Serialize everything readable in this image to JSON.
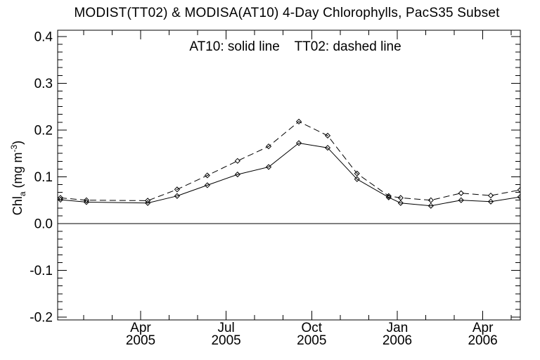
{
  "window": {
    "background": "#ffffff",
    "foreground": "#000000"
  },
  "chart_data": {
    "type": "line",
    "title": "MODIST(TT02) & MODISA(AT10) 4-Day Chlorophylls, PacS35 Subset",
    "legend_text": "AT10: solid line    TT02: dashed line",
    "ylabel": {
      "pre": "Chl",
      "sub": "a",
      "mid": " (mg m",
      "sup": "-3",
      "post": ")"
    },
    "y_axis": {
      "ticks": [
        {
          "label": "0.4",
          "value": 0.4
        },
        {
          "label": "0.3",
          "value": 0.3
        },
        {
          "label": "0.2",
          "value": 0.2
        },
        {
          "label": "0.1",
          "value": 0.1
        },
        {
          "label": "0.0",
          "value": 0.0
        },
        {
          "label": "-0.1",
          "value": -0.1
        },
        {
          "label": "-0.2",
          "value": -0.2
        }
      ],
      "minor_intervals_per_major": 6,
      "zero_reference_line": true,
      "grid": false
    },
    "x_axis": {
      "major_ticks": [
        {
          "line1": "Apr",
          "line2": "2005",
          "m": 3
        },
        {
          "line1": "Jul",
          "line2": "2005",
          "m": 6
        },
        {
          "line1": "Oct",
          "line2": "2005",
          "m": 9
        },
        {
          "line1": "Jan",
          "line2": "2006",
          "m": 12
        },
        {
          "line1": "Apr",
          "line2": "2006",
          "m": 15
        }
      ],
      "minor_tick_every_months": 1,
      "range_months_since_jan2005": [
        0.1,
        16.31
      ]
    },
    "series": [
      {
        "name": "AT10",
        "line_style": "solid",
        "marker": "diamond",
        "x_months_since_jan2005": [
          0.19,
          1.1,
          3.25,
          4.28,
          5.34,
          6.4,
          7.49,
          8.55,
          9.56,
          10.59,
          11.7,
          12.12,
          13.18,
          14.24,
          15.28,
          16.31
        ],
        "values": [
          0.051,
          0.046,
          0.044,
          0.059,
          0.082,
          0.105,
          0.121,
          0.172,
          0.162,
          0.095,
          0.056,
          0.044,
          0.038,
          0.05,
          0.047,
          0.057
        ]
      },
      {
        "name": "TT02",
        "line_style": "dashed",
        "marker": "diamond",
        "x_months_since_jan2005": [
          0.19,
          1.1,
          3.25,
          4.28,
          5.34,
          6.4,
          7.49,
          8.55,
          9.56,
          10.59,
          11.7,
          12.12,
          13.18,
          14.24,
          15.28,
          16.31
        ],
        "values": [
          0.055,
          0.05,
          0.049,
          0.073,
          0.103,
          0.134,
          0.165,
          0.218,
          0.188,
          0.107,
          0.059,
          0.055,
          0.05,
          0.065,
          0.06,
          0.072
        ]
      }
    ]
  }
}
